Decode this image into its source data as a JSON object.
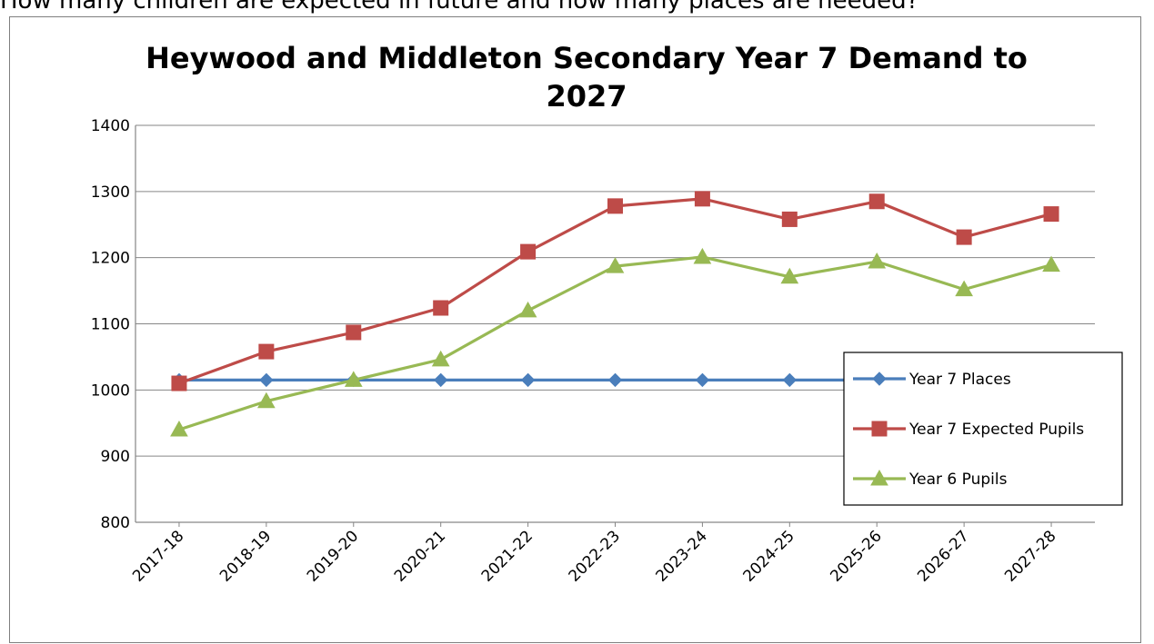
{
  "page": {
    "heading": "How many children are expected in future and how many places are needed?"
  },
  "chart_data": {
    "type": "line",
    "title": "Heywood and Middleton Secondary Year 7 Demand to 2027",
    "title_lines": [
      "Heywood and Middleton Secondary Year 7 Demand to",
      "2027"
    ],
    "xlabel": "",
    "ylabel": "",
    "categories": [
      "2017-18",
      "2018-19",
      "2019-20",
      "2020-21",
      "2021-22",
      "2022-23",
      "2023-24",
      "2024-25",
      "2025-26",
      "2026-27",
      "2027-28"
    ],
    "ylim": [
      800,
      1400
    ],
    "yticks": [
      800,
      900,
      1000,
      1100,
      1200,
      1300,
      1400
    ],
    "grid": true,
    "legend_position": "right",
    "series": [
      {
        "name": "Year 7 Places",
        "color": "#4a7ebb",
        "marker": "diamond",
        "values": [
          1015,
          1015,
          1015,
          1015,
          1015,
          1015,
          1015,
          1015,
          1015,
          1015,
          1015
        ]
      },
      {
        "name": "Year 7 Expected Pupils",
        "color": "#be4b48",
        "marker": "square",
        "values": [
          1010,
          1058,
          1087,
          1124,
          1209,
          1278,
          1289,
          1258,
          1285,
          1231,
          1266
        ]
      },
      {
        "name": "Year 6 Pupils",
        "color": "#98b954",
        "marker": "triangle",
        "values": [
          940,
          983,
          1015,
          1046,
          1120,
          1187,
          1201,
          1171,
          1194,
          1152,
          1189
        ]
      }
    ]
  }
}
